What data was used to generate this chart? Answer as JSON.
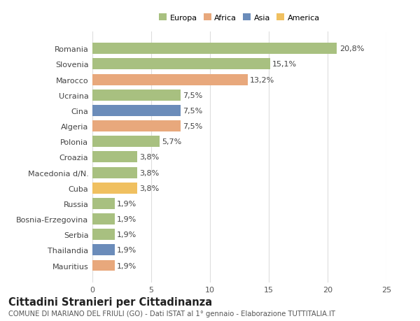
{
  "categories": [
    "Mauritius",
    "Thailandia",
    "Serbia",
    "Bosnia-Erzegovina",
    "Russia",
    "Cuba",
    "Macedonia d/N.",
    "Croazia",
    "Polonia",
    "Algeria",
    "Cina",
    "Ucraina",
    "Marocco",
    "Slovenia",
    "Romania"
  ],
  "values": [
    1.9,
    1.9,
    1.9,
    1.9,
    1.9,
    3.8,
    3.8,
    3.8,
    5.7,
    7.5,
    7.5,
    7.5,
    13.2,
    15.1,
    20.8
  ],
  "labels": [
    "1,9%",
    "1,9%",
    "1,9%",
    "1,9%",
    "1,9%",
    "3,8%",
    "3,8%",
    "3,8%",
    "5,7%",
    "7,5%",
    "7,5%",
    "7,5%",
    "13,2%",
    "15,1%",
    "20,8%"
  ],
  "colors": [
    "#e8a87c",
    "#6b8cba",
    "#a8c080",
    "#a8c080",
    "#a8c080",
    "#f0c060",
    "#a8c080",
    "#a8c080",
    "#a8c080",
    "#e8a87c",
    "#6b8cba",
    "#a8c080",
    "#e8a87c",
    "#a8c080",
    "#a8c080"
  ],
  "legend": [
    {
      "label": "Europa",
      "color": "#a8c080"
    },
    {
      "label": "Africa",
      "color": "#e8a87c"
    },
    {
      "label": "Asia",
      "color": "#6b8cba"
    },
    {
      "label": "America",
      "color": "#f0c060"
    }
  ],
  "title": "Cittadini Stranieri per Cittadinanza",
  "subtitle": "COMUNE DI MARIANO DEL FRIULI (GO) - Dati ISTAT al 1° gennaio - Elaborazione TUTTITALIA.IT",
  "xlim": [
    0,
    25
  ],
  "xticks": [
    0,
    5,
    10,
    15,
    20,
    25
  ],
  "background_color": "#ffffff",
  "bar_height": 0.72,
  "grid_color": "#dddddd",
  "label_fontsize": 8.0,
  "tick_fontsize": 8.0,
  "title_fontsize": 10.5,
  "subtitle_fontsize": 7.2
}
